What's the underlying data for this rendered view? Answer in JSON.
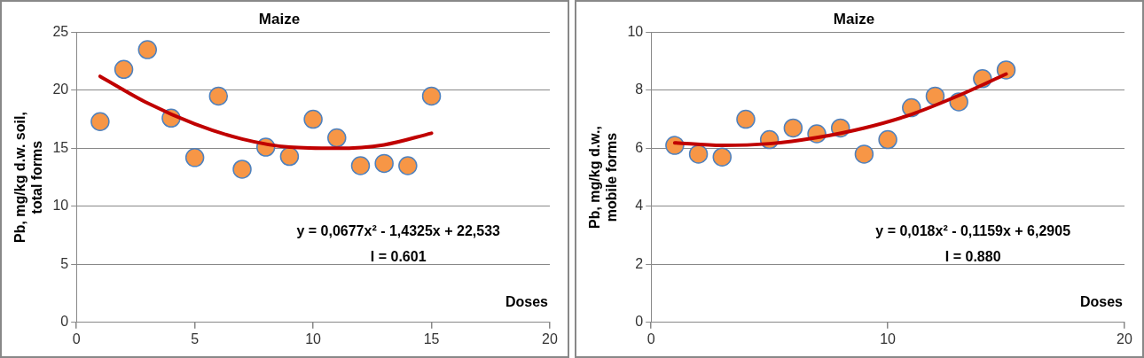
{
  "chart_data": [
    {
      "type": "scatter",
      "title": "Maize",
      "xlabel": "Doses",
      "ylabel": "Pb, mg/kg d.w. soil,\ntotal forms",
      "xlim": [
        0,
        20
      ],
      "xticks": [
        0,
        5,
        10,
        15,
        20
      ],
      "ylim": [
        0,
        25
      ],
      "yticks": [
        0,
        5,
        10,
        15,
        20,
        25
      ],
      "grid": "y",
      "legend": false,
      "marker": "circle",
      "series": [
        {
          "color": "#f79646",
          "x": [
            1,
            2,
            3,
            4,
            5,
            6,
            7,
            8,
            9,
            10,
            11,
            12,
            13,
            14,
            15
          ],
          "values": [
            17.3,
            21.8,
            23.5,
            17.6,
            14.2,
            19.5,
            13.2,
            15.1,
            14.3,
            17.5,
            15.9,
            13.5,
            13.7,
            13.5,
            19.5
          ]
        },
        {
          "type": "line",
          "marker": "none",
          "color": "#c00000",
          "x": [
            1,
            3,
            5,
            7,
            9,
            11,
            13,
            15
          ],
          "values": [
            21.2,
            18.9,
            17.1,
            15.8,
            15.1,
            15.0,
            15.3,
            16.3
          ]
        }
      ],
      "annotations": [
        "y = 0,0677x² - 1,4325x + 22,533",
        "I = 0.601"
      ]
    },
    {
      "type": "scatter",
      "title": "Maize",
      "xlabel": "Doses",
      "ylabel": "Pb, mg/kg d.w.,\nmobile forms",
      "xlim": [
        0,
        20
      ],
      "xticks": [
        0,
        10,
        20
      ],
      "ylim": [
        0,
        10
      ],
      "yticks": [
        0,
        2,
        4,
        6,
        8,
        10
      ],
      "grid": "y",
      "legend": false,
      "marker": "circle",
      "series": [
        {
          "color": "#f79646",
          "x": [
            1,
            2,
            3,
            4,
            5,
            6,
            7,
            8,
            9,
            10,
            11,
            12,
            13,
            14,
            15
          ],
          "values": [
            6.1,
            5.8,
            5.7,
            7.0,
            6.3,
            6.7,
            6.5,
            6.7,
            5.8,
            6.3,
            7.4,
            7.8,
            7.6,
            8.4,
            8.7
          ]
        },
        {
          "type": "line",
          "marker": "none",
          "color": "#c00000",
          "x": [
            1,
            3,
            5,
            7,
            9,
            11,
            13,
            15
          ],
          "values": [
            6.19,
            6.1,
            6.16,
            6.37,
            6.7,
            7.17,
            7.82,
            8.56
          ]
        }
      ],
      "annotations": [
        "y = 0,018x² - 0,1159x + 6,2905",
        "I = 0.880"
      ]
    }
  ]
}
